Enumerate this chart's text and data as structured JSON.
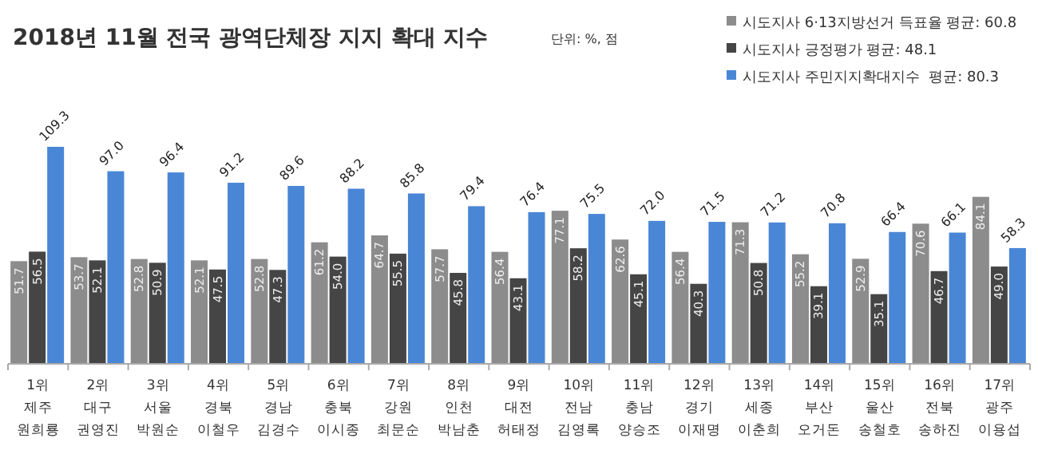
{
  "chart_data": {
    "type": "bar",
    "title": "2018년 11월 전국 광역단체장 지지 확대 지수",
    "subtitle": "단위: %, 점",
    "categories": [
      "1위 제주 원희룡",
      "2위 대구 권영진",
      "3위 서울 박원순",
      "4위 경북 이철우",
      "5위 경남 김경수",
      "6위 충북 이시종",
      "7위 강원 최문순",
      "8위 인천 박남춘",
      "9위 대전 허태정",
      "10위 전남 김영록",
      "11위 충남 양승조",
      "12위 경기 이재명",
      "13위 세종 이춘희",
      "14위 부산 오거돈",
      "15위 울산 송철호",
      "16위 전북 송하진",
      "17위 광주 이용섭"
    ],
    "series": [
      {
        "name": "시도지사 6·13지방선거 득표율 평균: 60.8",
        "color": "#8c8c8c",
        "values": [
          51.7,
          53.7,
          52.8,
          52.1,
          52.8,
          61.2,
          64.7,
          57.7,
          56.4,
          77.1,
          62.6,
          56.4,
          71.3,
          55.2,
          52.9,
          70.6,
          84.1
        ],
        "value_labels": [
          "51.7",
          "53.7",
          "52.8",
          "52.1",
          "52.8",
          "61.2",
          "64.7",
          "57.7",
          "56.4",
          "77.1",
          "62.6",
          "56.4",
          "71.3",
          "55.2",
          "52.9",
          "70.6",
          "84.1"
        ]
      },
      {
        "name": "시도지사 긍정평가 평균: 48.1",
        "color": "#454545",
        "values": [
          56.5,
          52.1,
          50.9,
          47.5,
          47.3,
          54.0,
          55.5,
          45.8,
          43.1,
          58.2,
          45.1,
          40.3,
          50.8,
          39.1,
          35.1,
          46.7,
          49.0
        ],
        "value_labels": [
          "56.5",
          "52.1",
          "50.9",
          "47.5",
          "47.3",
          "54.0",
          "55.5",
          "45.8",
          "43.1",
          "58.2",
          "45.1",
          "40.3",
          "50.8",
          "39.1",
          "35.1",
          "46.7",
          "49.0"
        ]
      },
      {
        "name": "시도지사 주민지지확대지수  평균: 80.3",
        "color": "#4a86d6",
        "values": [
          109.3,
          97.0,
          96.4,
          91.2,
          89.6,
          88.2,
          85.8,
          79.4,
          76.4,
          75.5,
          72.0,
          71.5,
          71.2,
          70.8,
          66.4,
          66.1,
          58.3
        ],
        "value_labels": [
          "109.3",
          "97.0",
          "96.4",
          "91.2",
          "89.6",
          "88.2",
          "85.8",
          "79.4",
          "76.4",
          "75.5",
          "72.0",
          "71.5",
          "71.2",
          "70.8",
          "66.4",
          "66.1",
          "58.3"
        ]
      }
    ],
    "legend": "top right",
    "relative": false
  }
}
